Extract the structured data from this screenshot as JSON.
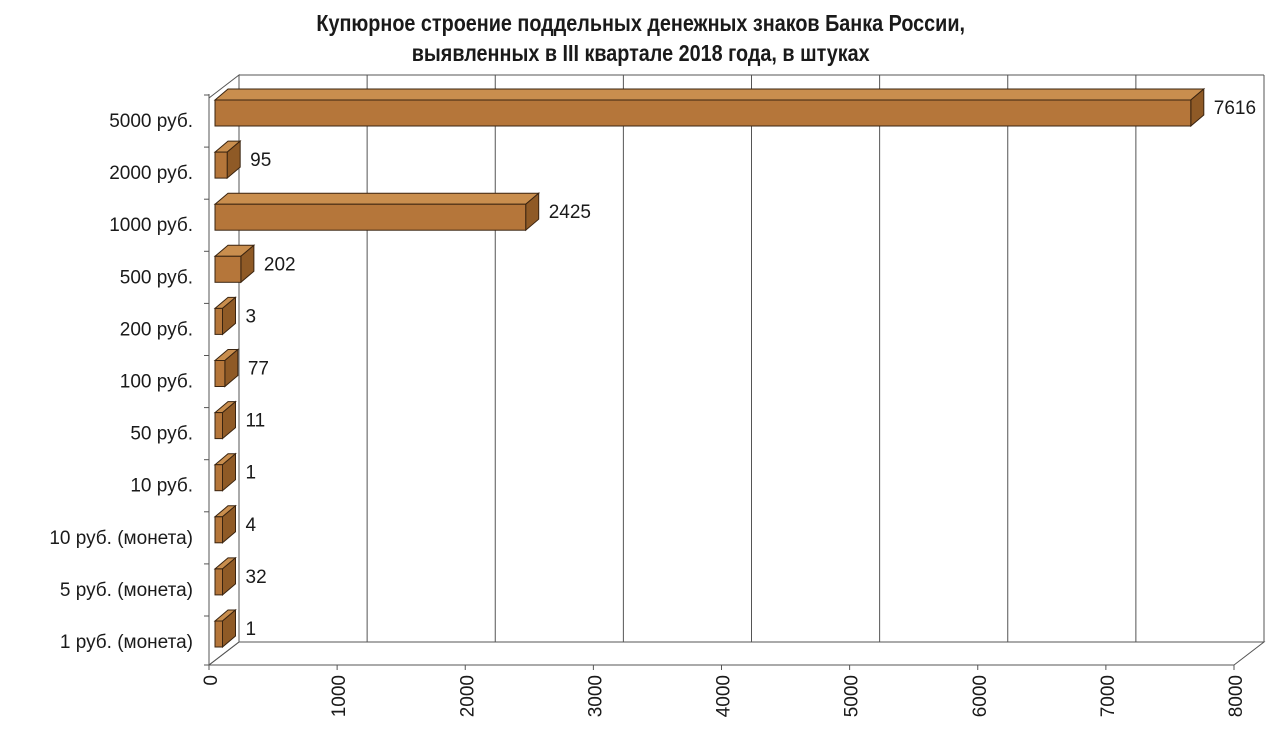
{
  "chart_data": {
    "type": "bar",
    "orientation": "horizontal",
    "style": "3d",
    "title_lines": [
      "Купюрное строение поддельных денежных знаков Банка России,",
      "выявленных в III квартале 2018 года, в штуках"
    ],
    "categories": [
      "5000 руб.",
      "2000 руб.",
      "1000 руб.",
      "500 руб.",
      "200 руб.",
      "100 руб.",
      "50 руб.",
      "10 руб.",
      "10 руб. (монета)",
      "5 руб. (монета)",
      "1 руб. (монета)"
    ],
    "values": [
      7616,
      95,
      2425,
      202,
      3,
      77,
      11,
      1,
      4,
      32,
      1
    ],
    "data_labels": [
      "7616",
      "95",
      "2425",
      "202",
      "3",
      "77",
      "11",
      "1",
      "4",
      "32",
      "1"
    ],
    "x_ticks": [
      "0",
      "1000",
      "2000",
      "3000",
      "4000",
      "5000",
      "6000",
      "7000",
      "8000"
    ],
    "xlim": [
      0,
      8000
    ],
    "grid": "vertical",
    "legend": "none",
    "colors": {
      "bar_front": "#b5763a",
      "bar_top": "#c98e4e",
      "bar_side": "#8f5a26",
      "bar_edge": "#3a2410",
      "grid": "#555555",
      "text": "#1a1a1a"
    }
  }
}
